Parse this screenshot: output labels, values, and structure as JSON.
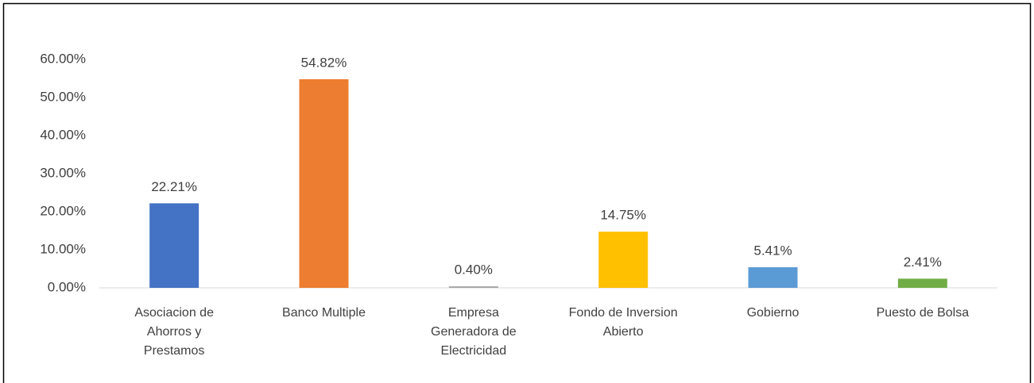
{
  "chart_data": {
    "type": "bar",
    "categories": [
      "Asociacion de Ahorros y Prestamos",
      "Banco Multiple",
      "Empresa Generadora de Electricidad",
      "Fondo de Inversion Abierto",
      "Gobierno",
      "Puesto de Bolsa"
    ],
    "values": [
      22.21,
      54.82,
      0.4,
      14.75,
      5.41,
      2.41
    ],
    "value_labels": [
      "22.21%",
      "54.82%",
      "0.40%",
      "14.75%",
      "5.41%",
      "2.41%"
    ],
    "colors": [
      "#4472c4",
      "#ed7d31",
      "#a5a5a5",
      "#ffc000",
      "#5b9bd5",
      "#70ad47"
    ],
    "ylim": [
      0,
      60
    ],
    "yticks": [
      {
        "value": 0,
        "label": "0.00%"
      },
      {
        "value": 10,
        "label": "10.00%"
      },
      {
        "value": 20,
        "label": "20.00%"
      },
      {
        "value": 30,
        "label": "30.00%"
      },
      {
        "value": 40,
        "label": "40.00%"
      },
      {
        "value": 50,
        "label": "50.00%"
      },
      {
        "value": 60,
        "label": "60.00%"
      }
    ],
    "grid": false
  }
}
